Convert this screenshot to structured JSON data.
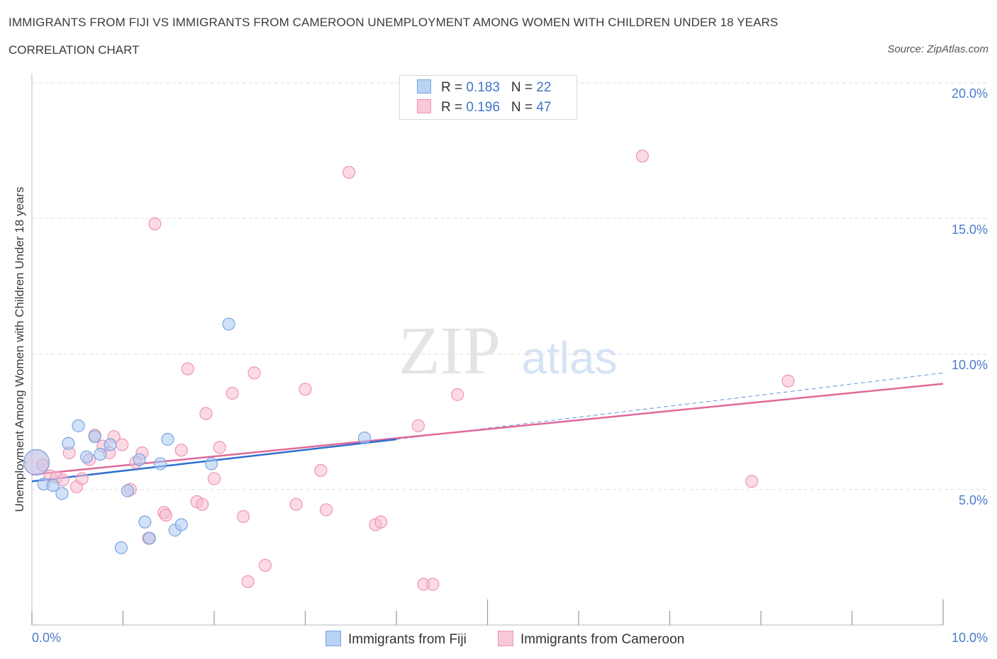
{
  "header": {
    "title": "IMMIGRANTS FROM FIJI VS IMMIGRANTS FROM CAMEROON UNEMPLOYMENT AMONG WOMEN WITH CHILDREN UNDER 18 YEARS",
    "subtitle": "CORRELATION CHART",
    "source": "Source: ZipAtlas.com"
  },
  "watermark": {
    "zip": "ZIP",
    "atlas": "atlas"
  },
  "legend": {
    "fiji": {
      "r_label": "R = ",
      "r_value": "0.183",
      "n_label": "N = ",
      "n_value": "22"
    },
    "cameroon": {
      "r_label": "R = ",
      "r_value": "0.196",
      "n_label": "N = ",
      "n_value": "47"
    }
  },
  "colors": {
    "fiji_fill": "#a9c8f2",
    "fiji_stroke": "#7aa6e0",
    "fiji_line": "#2f6fd0",
    "cameroon_fill": "#f7bcd0",
    "cameroon_stroke": "#ee94b4",
    "cameroon_line": "#e0699a",
    "tick_text": "#4a7cc9",
    "grid": "#dddddd"
  },
  "chart_data": {
    "type": "scatter",
    "title": "IMMIGRANTS FROM FIJI VS IMMIGRANTS FROM CAMEROON UNEMPLOYMENT AMONG WOMEN WITH CHILDREN UNDER 18 YEARS",
    "xlabel": "",
    "ylabel": "Unemployment Among Women with Children Under 18 years",
    "xlim": [
      0,
      10
    ],
    "ylim": [
      0,
      20
    ],
    "x_tick_labels": [
      "0.0%",
      "10.0%"
    ],
    "y_ticks": [
      5,
      10,
      15,
      20
    ],
    "y_tick_labels": [
      "5.0%",
      "10.0%",
      "15.0%",
      "20.0%"
    ],
    "legend_position": "bottom",
    "series": [
      {
        "name": "Immigrants from Fiji",
        "R": 0.183,
        "N": 22,
        "trend": {
          "x0": 0,
          "y0": 5.3,
          "x1": 4.0,
          "y1": 6.85,
          "dash_x1": 10.0,
          "dash_y1": 9.3
        },
        "points": [
          {
            "x": 0.05,
            "y": 6.0,
            "big": true
          },
          {
            "x": 0.13,
            "y": 5.2
          },
          {
            "x": 0.23,
            "y": 5.15
          },
          {
            "x": 0.33,
            "y": 4.85
          },
          {
            "x": 0.4,
            "y": 6.7
          },
          {
            "x": 0.51,
            "y": 7.35
          },
          {
            "x": 0.6,
            "y": 6.2
          },
          {
            "x": 0.69,
            "y": 6.95
          },
          {
            "x": 0.75,
            "y": 6.3
          },
          {
            "x": 0.86,
            "y": 6.65
          },
          {
            "x": 0.98,
            "y": 2.85
          },
          {
            "x": 1.05,
            "y": 4.95
          },
          {
            "x": 1.18,
            "y": 6.1
          },
          {
            "x": 1.24,
            "y": 3.8
          },
          {
            "x": 1.29,
            "y": 3.2
          },
          {
            "x": 1.41,
            "y": 5.95
          },
          {
            "x": 1.49,
            "y": 6.85
          },
          {
            "x": 1.57,
            "y": 3.5
          },
          {
            "x": 1.64,
            "y": 3.7
          },
          {
            "x": 1.97,
            "y": 5.95
          },
          {
            "x": 2.16,
            "y": 11.1
          },
          {
            "x": 3.65,
            "y": 6.9
          }
        ]
      },
      {
        "name": "Immigrants from Cameroon",
        "R": 0.196,
        "N": 47,
        "trend": {
          "x0": 0,
          "y0": 5.55,
          "x1": 10.0,
          "y1": 8.9
        },
        "points": [
          {
            "x": 0.05,
            "y": 6.0,
            "big": true
          },
          {
            "x": 0.12,
            "y": 5.9
          },
          {
            "x": 0.2,
            "y": 5.5
          },
          {
            "x": 0.27,
            "y": 5.45
          },
          {
            "x": 0.34,
            "y": 5.35
          },
          {
            "x": 0.41,
            "y": 6.35
          },
          {
            "x": 0.49,
            "y": 5.1
          },
          {
            "x": 0.55,
            "y": 5.4
          },
          {
            "x": 0.63,
            "y": 6.1
          },
          {
            "x": 0.69,
            "y": 7.0
          },
          {
            "x": 0.78,
            "y": 6.6
          },
          {
            "x": 0.85,
            "y": 6.35
          },
          {
            "x": 0.9,
            "y": 6.95
          },
          {
            "x": 0.99,
            "y": 6.65
          },
          {
            "x": 1.08,
            "y": 5.0
          },
          {
            "x": 1.14,
            "y": 6.0
          },
          {
            "x": 1.21,
            "y": 6.35
          },
          {
            "x": 1.28,
            "y": 3.2
          },
          {
            "x": 1.35,
            "y": 14.8
          },
          {
            "x": 1.45,
            "y": 4.15
          },
          {
            "x": 1.47,
            "y": 4.05
          },
          {
            "x": 1.64,
            "y": 6.45
          },
          {
            "x": 1.71,
            "y": 9.45
          },
          {
            "x": 1.81,
            "y": 4.55
          },
          {
            "x": 1.87,
            "y": 4.45
          },
          {
            "x": 1.91,
            "y": 7.8
          },
          {
            "x": 2.0,
            "y": 5.4
          },
          {
            "x": 2.06,
            "y": 6.55
          },
          {
            "x": 2.2,
            "y": 8.55
          },
          {
            "x": 2.32,
            "y": 4.0
          },
          {
            "x": 2.37,
            "y": 1.6
          },
          {
            "x": 2.44,
            "y": 9.3
          },
          {
            "x": 2.56,
            "y": 2.2
          },
          {
            "x": 2.9,
            "y": 4.45
          },
          {
            "x": 3.0,
            "y": 8.7
          },
          {
            "x": 3.17,
            "y": 5.7
          },
          {
            "x": 3.23,
            "y": 4.25
          },
          {
            "x": 3.48,
            "y": 16.7
          },
          {
            "x": 3.77,
            "y": 3.7
          },
          {
            "x": 3.83,
            "y": 3.8
          },
          {
            "x": 4.24,
            "y": 7.35
          },
          {
            "x": 4.3,
            "y": 1.5
          },
          {
            "x": 4.4,
            "y": 1.5
          },
          {
            "x": 4.67,
            "y": 8.5
          },
          {
            "x": 6.7,
            "y": 17.3
          },
          {
            "x": 7.9,
            "y": 5.3
          },
          {
            "x": 8.3,
            "y": 9.0
          }
        ]
      }
    ]
  }
}
